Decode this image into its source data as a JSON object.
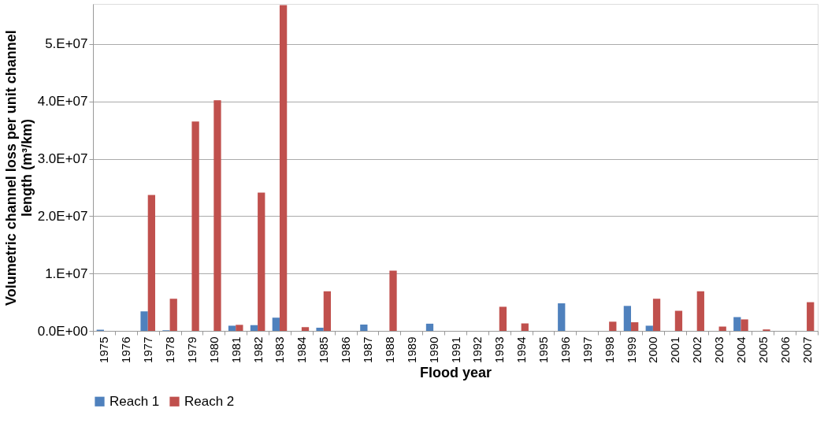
{
  "chart_data": {
    "type": "bar",
    "xlabel": "Flood year",
    "ylabel": "Volumetric channel loss per unit channel\nlength (m³/km)",
    "categories": [
      "1975",
      "1976",
      "1977",
      "1978",
      "1979",
      "1980",
      "1981",
      "1982",
      "1983",
      "1984",
      "1985",
      "1986",
      "1987",
      "1988",
      "1989",
      "1990",
      "1991",
      "1992",
      "1993",
      "1994",
      "1995",
      "1996",
      "1997",
      "1998",
      "1999",
      "2000",
      "2001",
      "2002",
      "2003",
      "2004",
      "2005",
      "2006",
      "2007"
    ],
    "series": [
      {
        "name": "Reach 1",
        "color": "#4f81bd",
        "values": [
          200000,
          0,
          3400000,
          100000,
          0,
          0,
          900000,
          1000000,
          2300000,
          0,
          550000,
          0,
          1100000,
          0,
          0,
          1250000,
          0,
          0,
          0,
          0,
          0,
          4800000,
          0,
          0,
          4350000,
          900000,
          0,
          0,
          0,
          2400000,
          0,
          0,
          0
        ]
      },
      {
        "name": "Reach 2",
        "color": "#c0504d",
        "values": [
          0,
          0,
          23700000,
          5600000,
          36500000,
          40200000,
          1050000,
          24100000,
          56800000,
          650000,
          6900000,
          0,
          0,
          10500000,
          0,
          0,
          0,
          0,
          4200000,
          1300000,
          0,
          0,
          0,
          1600000,
          1500000,
          5600000,
          3500000,
          6900000,
          750000,
          2000000,
          250000,
          0,
          5000000
        ]
      }
    ],
    "ylim": [
      0,
      57000000
    ],
    "yticks": [
      {
        "value": 0,
        "label": "0.0E+00"
      },
      {
        "value": 10000000,
        "label": "1.E+07"
      },
      {
        "value": 20000000,
        "label": "2.0E+07"
      },
      {
        "value": 30000000,
        "label": "3.0E+07"
      },
      {
        "value": 40000000,
        "label": "4.0E+07"
      },
      {
        "value": 50000000,
        "label": "5.E+07"
      }
    ],
    "grid": "y",
    "legend": "bottom"
  }
}
